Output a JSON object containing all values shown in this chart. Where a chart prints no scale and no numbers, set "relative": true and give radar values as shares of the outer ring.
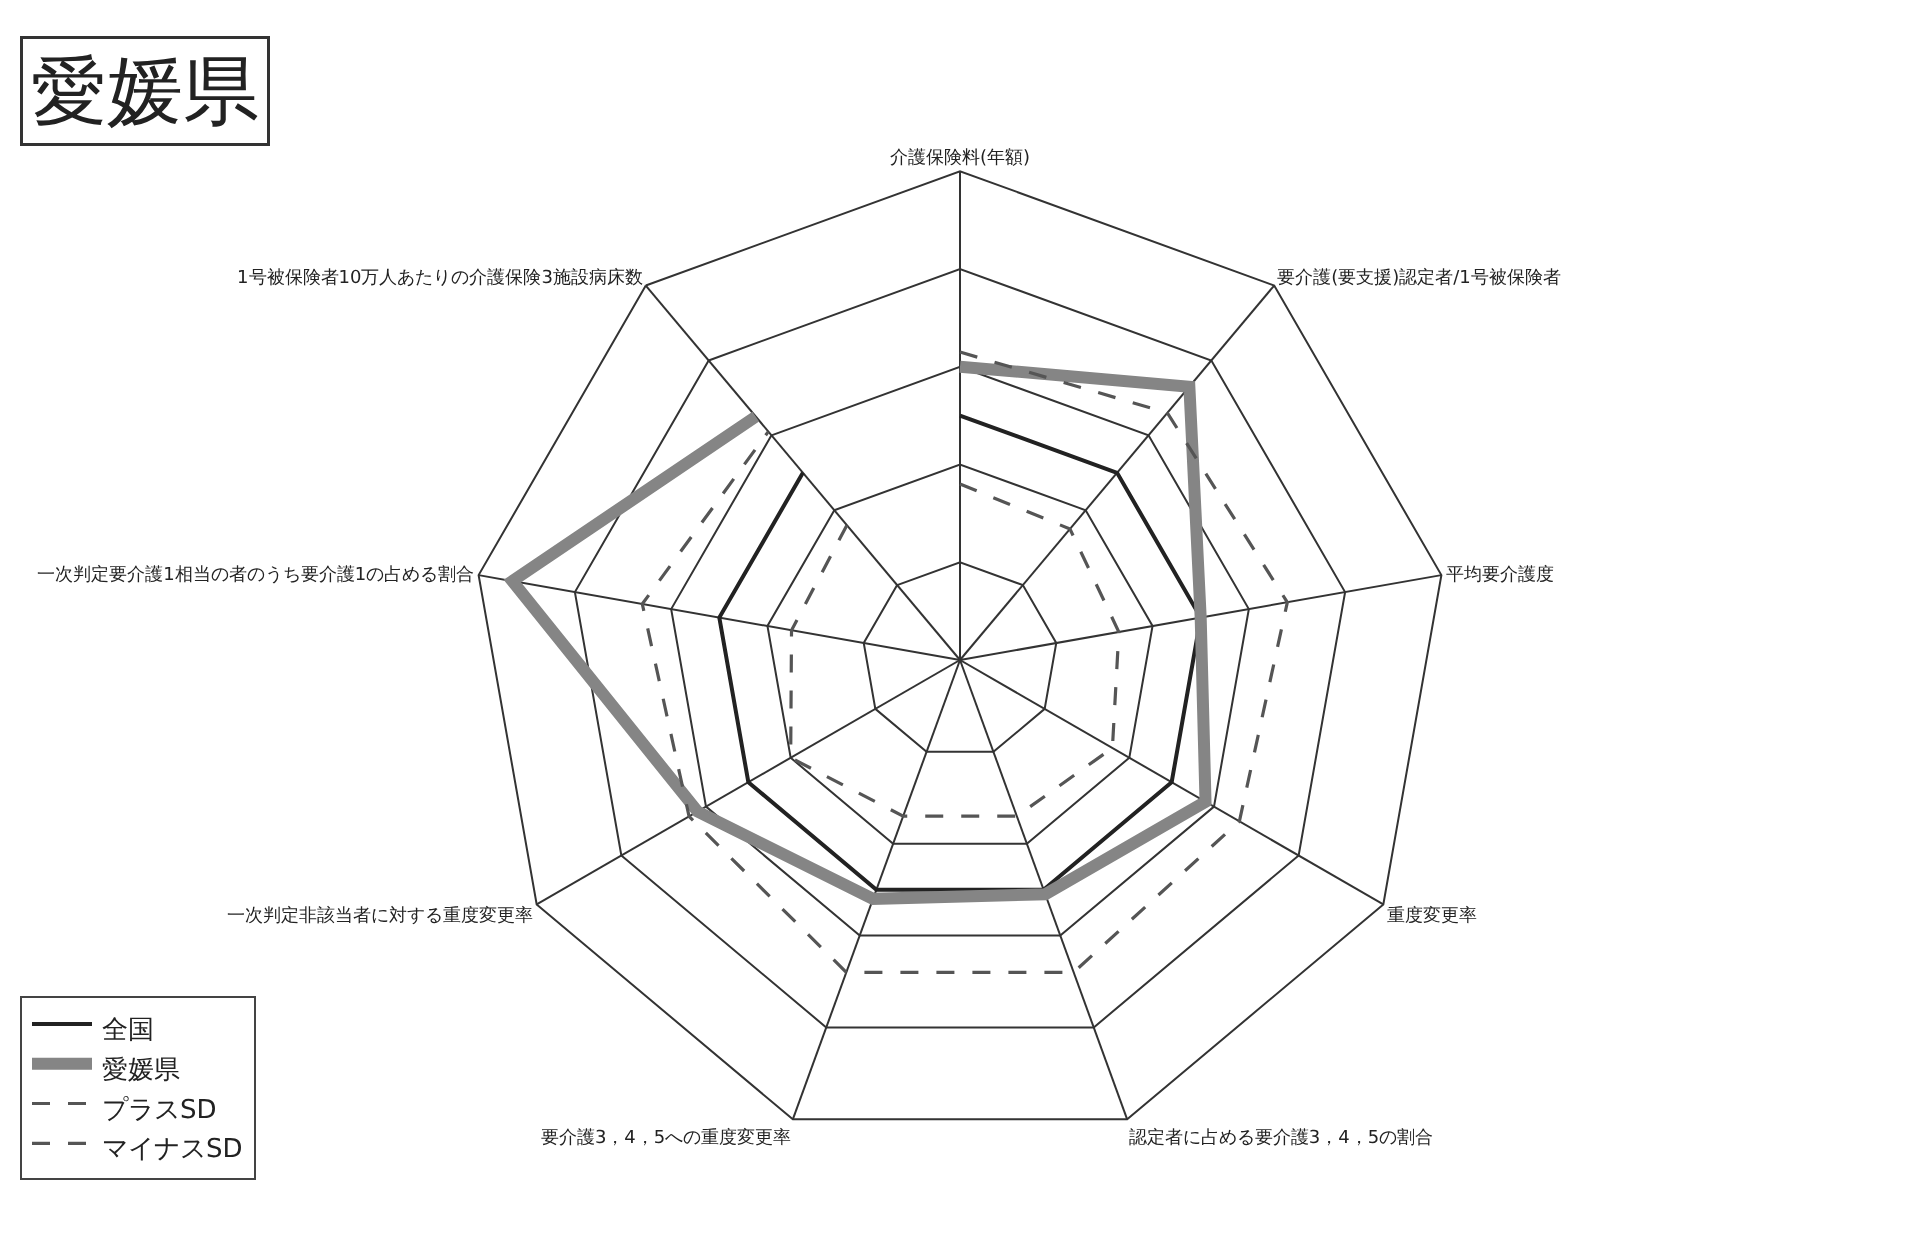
{
  "chart_data": {
    "type": "radar",
    "title": "愛媛県",
    "relative": true,
    "grid": true,
    "legend": "bottom left",
    "marker": "none",
    "categories": [
      "介護保険料(年額)",
      "要介護(要支援)認定者/1号被保険者",
      "平均要介護度",
      "重度変更率",
      "認定者に占める要介護3，4，5の割合",
      "要介護3，4，5への重度変更率",
      "一次判定非該当者に対する重度変更率",
      "一次判定要介護1相当の者のうち要介護1の占める割合",
      "1号被保険者10万人あたりの介護保険3施設病床数"
    ],
    "series": [
      {
        "name": "全国",
        "color": "#222222",
        "line_style": "solid",
        "values": [
          0.5,
          0.5,
          0.5,
          0.5,
          0.5,
          0.5,
          0.5,
          0.5,
          0.5
        ]
      },
      {
        "name": "愛媛県",
        "color": "#858585",
        "line_style": "solid",
        "values": [
          0.6,
          0.73,
          0.5,
          0.58,
          0.51,
          0.52,
          0.62,
          0.93,
          0.65
        ]
      },
      {
        "name": "プラスSD",
        "color": "#555555",
        "line_style": "dashed",
        "values": [
          0.63,
          0.66,
          0.68,
          0.66,
          0.68,
          0.68,
          0.64,
          0.66,
          0.61
        ]
      },
      {
        "name": "マイナスSD",
        "color": "#555555",
        "line_style": "dashed",
        "values": [
          0.36,
          0.35,
          0.33,
          0.36,
          0.34,
          0.34,
          0.4,
          0.35,
          0.36
        ]
      }
    ]
  }
}
